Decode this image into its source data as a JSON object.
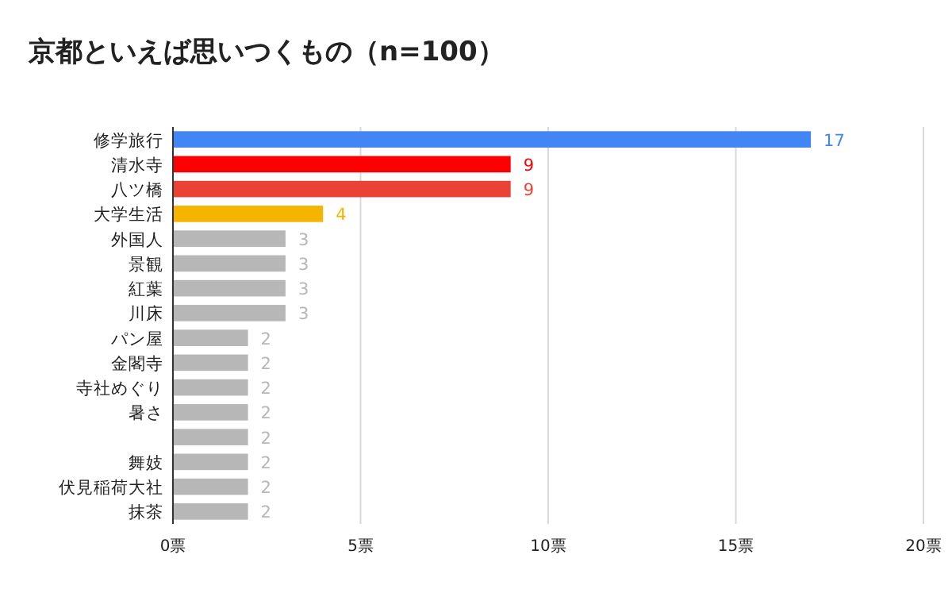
{
  "chart_data": {
    "type": "bar",
    "orientation": "horizontal",
    "title": "京都といえば思いつくもの（n=100）",
    "categories": [
      "修学旅行",
      "清水寺",
      "八ツ橋",
      "大学生活",
      "外国人",
      "景観",
      "紅葉",
      "川床",
      "パン屋",
      "金閣寺",
      "寺社めぐり",
      "暑さ",
      null,
      "舞妓",
      "伏見稲荷大社",
      "抹茶"
    ],
    "values": [
      17,
      9,
      9,
      4,
      3,
      3,
      3,
      3,
      2,
      2,
      2,
      2,
      2,
      2,
      2,
      2
    ],
    "colors": [
      "#4285f4",
      "#ff0000",
      "#ea4335",
      "#f4b400",
      "#b7b7b7",
      "#b7b7b7",
      "#b7b7b7",
      "#b7b7b7",
      "#b7b7b7",
      "#b7b7b7",
      "#b7b7b7",
      "#b7b7b7",
      "#b7b7b7",
      "#b7b7b7",
      "#b7b7b7",
      "#b7b7b7"
    ],
    "xlim": [
      0,
      20
    ],
    "xticks": [
      {
        "value": 0,
        "label": "0票"
      },
      {
        "value": 5,
        "label": "5票"
      },
      {
        "value": 10,
        "label": "10票"
      },
      {
        "value": 15,
        "label": "15票"
      },
      {
        "value": 20,
        "label": "20票"
      }
    ],
    "grid": "x",
    "data_labels": true
  }
}
